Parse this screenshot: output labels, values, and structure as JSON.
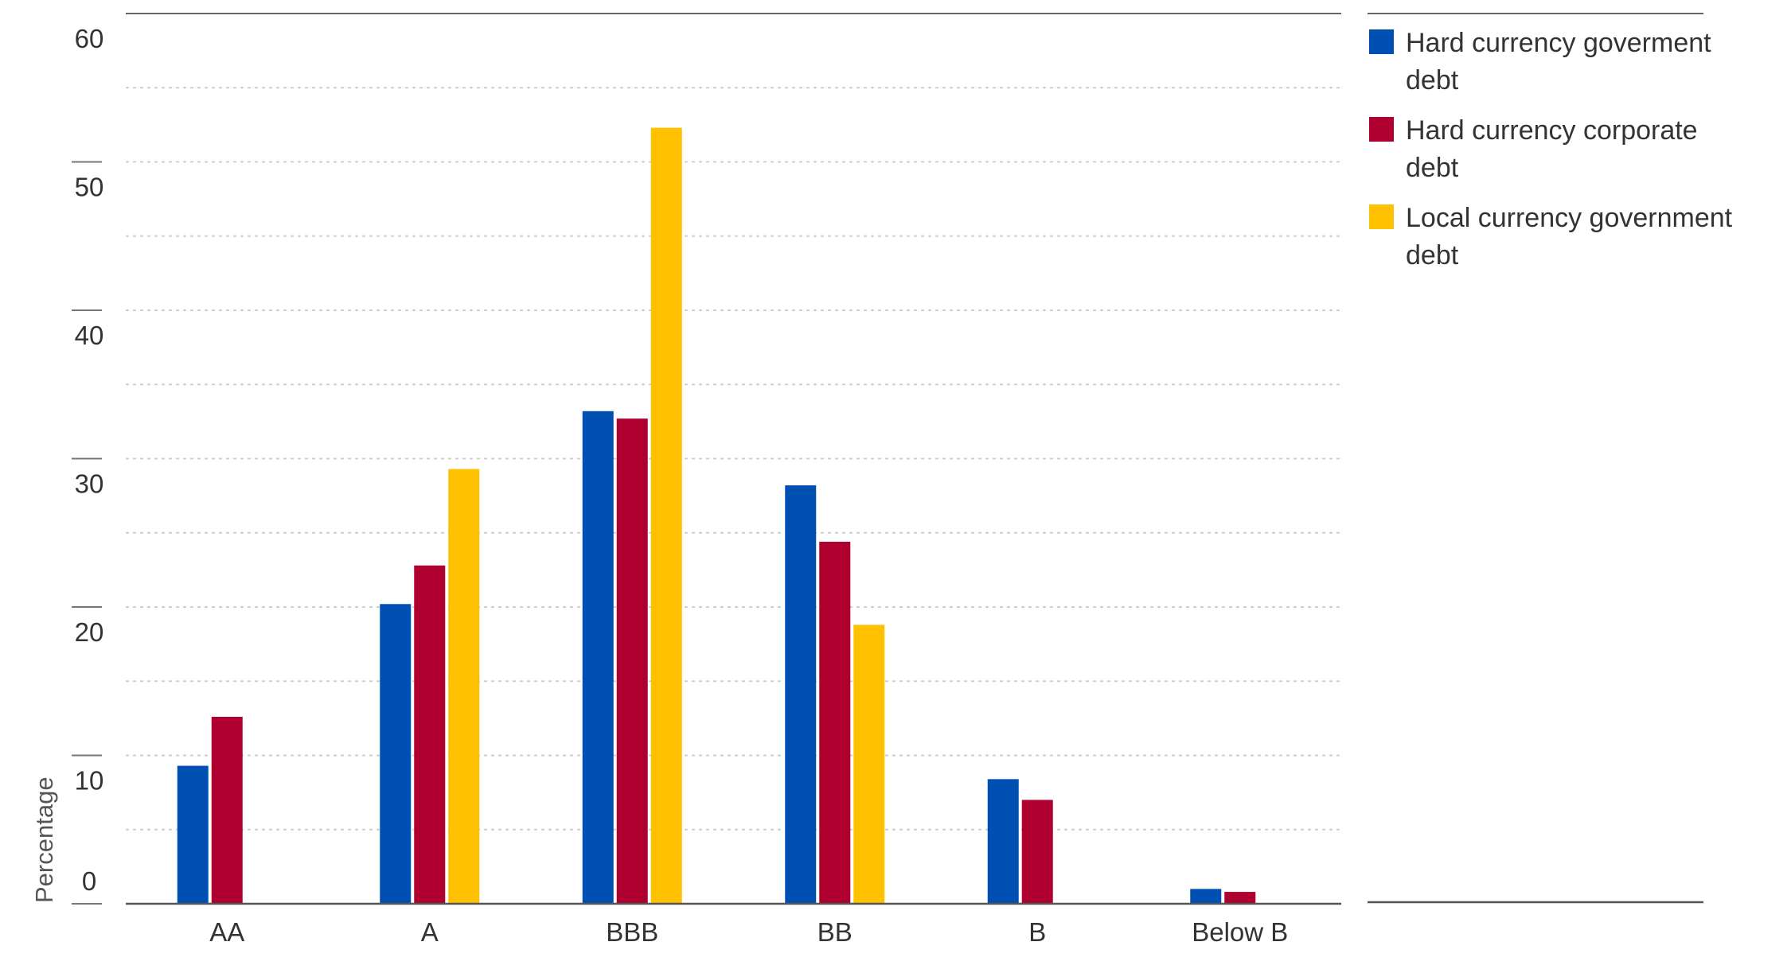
{
  "chart_data": {
    "type": "bar",
    "title": "",
    "xlabel": "",
    "ylabel": "Percentage",
    "ylim": [
      0,
      60
    ],
    "y_ticks": [
      0,
      10,
      20,
      30,
      40,
      50,
      60
    ],
    "grid": true,
    "legend_position": "top-right",
    "categories": [
      "AA",
      "A",
      "BBB",
      "BB",
      "B",
      "Below B"
    ],
    "series": [
      {
        "name": "Hard currency goverment debt",
        "legend_lines": [
          "Hard currency goverment",
          "debt"
        ],
        "color": "#0050B4",
        "values": [
          9.3,
          20.2,
          33.2,
          28.2,
          8.4,
          1.0
        ]
      },
      {
        "name": "Hard currency corporate debt",
        "legend_lines": [
          "Hard currency corporate",
          "debt"
        ],
        "color": "#B0002F",
        "values": [
          12.6,
          22.8,
          32.7,
          24.4,
          7.0,
          0.8
        ]
      },
      {
        "name": "Local currency government debt",
        "legend_lines": [
          "Local currency government",
          "debt"
        ],
        "color": "#FFC000",
        "values": [
          null,
          29.3,
          52.3,
          18.8,
          null,
          null
        ]
      }
    ]
  }
}
